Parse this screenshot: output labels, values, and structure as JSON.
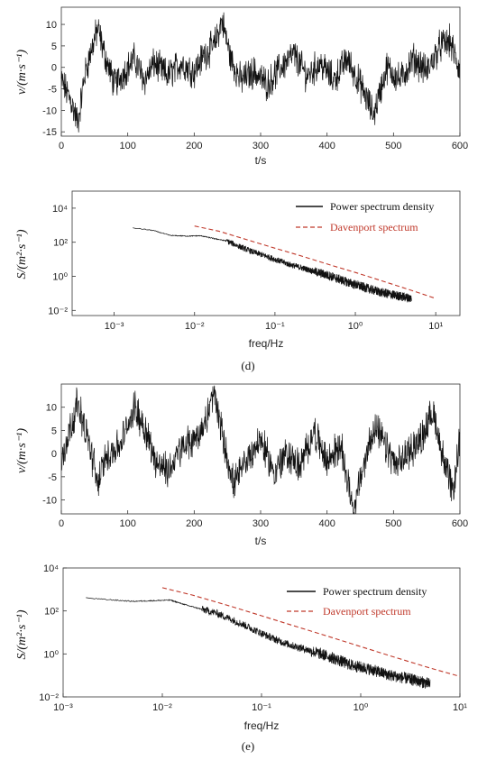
{
  "colors": {
    "signal": "#111111",
    "davenport": "#c0392b",
    "axis": "#333333"
  },
  "labels": {
    "panel_d": "(d)",
    "panel_e": "(e)"
  },
  "chart_data": [
    {
      "type": "line",
      "id": "velocity-d",
      "xlabel": "t/s",
      "ylabel": "v/(m·s⁻¹)",
      "xlim": [
        0,
        600
      ],
      "ylim": [
        -16,
        14
      ],
      "xticks": [
        0,
        100,
        200,
        300,
        400,
        500,
        600
      ],
      "yticks": [
        -15,
        -10,
        -5,
        0,
        5,
        10
      ],
      "series": [
        {
          "values_description_free": true,
          "t": [
            0,
            15,
            25,
            35,
            45,
            55,
            65,
            80,
            95,
            110,
            125,
            140,
            160,
            180,
            200,
            215,
            230,
            242,
            255,
            270,
            290,
            310,
            330,
            350,
            370,
            390,
            410,
            430,
            450,
            470,
            490,
            510,
            530,
            550,
            570,
            585,
            600
          ],
          "v": [
            -3,
            -8,
            -13,
            -2,
            4,
            9,
            3,
            -4,
            -1,
            2,
            -3,
            1,
            -2,
            1,
            -1,
            3,
            5,
            11,
            2,
            -3,
            -1,
            -4,
            0,
            3,
            -2,
            1,
            -3,
            2,
            -4,
            -11,
            0,
            -3,
            2,
            -1,
            5,
            6,
            -1
          ]
        }
      ]
    },
    {
      "type": "line",
      "id": "psd-d",
      "xlabel": "freq/Hz",
      "ylabel": "S/(m²·s⁻¹)",
      "xscale": "log",
      "yscale": "log",
      "xlim": [
        0.0003,
        20
      ],
      "ylim": [
        0.005,
        100000
      ],
      "xticks": [
        0.001,
        0.01,
        0.1,
        1,
        10
      ],
      "xtick_labels": [
        "10⁻³",
        "10⁻²",
        "10⁻¹",
        "10⁰",
        "10¹"
      ],
      "yticks": [
        0.01,
        1,
        100,
        10000
      ],
      "ytick_labels": [
        "10⁻²",
        "10⁰",
        "10²",
        "10⁴"
      ],
      "legend": "top-right",
      "series": [
        {
          "name": "Power spectrum density",
          "freq": [
            0.0017,
            0.003,
            0.005,
            0.008,
            0.012,
            0.018,
            0.025,
            0.035,
            0.05,
            0.07,
            0.1,
            0.15,
            0.2,
            0.3,
            0.5,
            0.8,
            1.2,
            2,
            3,
            5
          ],
          "psd": [
            700,
            500,
            250,
            230,
            240,
            160,
            120,
            60,
            30,
            18,
            10,
            5,
            3.5,
            2,
            1,
            0.45,
            0.25,
            0.12,
            0.08,
            0.05
          ]
        },
        {
          "name": "Davenport spectrum",
          "freq": [
            0.01,
            0.02,
            0.05,
            0.1,
            0.2,
            0.5,
            1,
            2,
            5,
            10
          ],
          "psd": [
            900,
            450,
            120,
            45,
            17,
            4.5,
            1.7,
            0.6,
            0.15,
            0.05
          ]
        }
      ]
    },
    {
      "type": "line",
      "id": "velocity-e",
      "xlabel": "t/s",
      "ylabel": "v/(m·s⁻¹)",
      "xlim": [
        0,
        600
      ],
      "ylim": [
        -13,
        15
      ],
      "xticks": [
        0,
        100,
        200,
        300,
        400,
        500,
        600
      ],
      "yticks": [
        -10,
        -5,
        0,
        5,
        10
      ],
      "series": [
        {
          "t": [
            0,
            10,
            25,
            40,
            55,
            70,
            90,
            110,
            125,
            140,
            160,
            180,
            200,
            215,
            230,
            245,
            260,
            280,
            300,
            320,
            340,
            360,
            380,
            400,
            420,
            440,
            455,
            470,
            490,
            505,
            520,
            540,
            560,
            575,
            590,
            600
          ],
          "v": [
            -2,
            4,
            11,
            3,
            -6,
            0,
            2,
            10,
            6,
            -1,
            -4,
            1,
            3,
            6,
            13,
            2,
            -7,
            -1,
            3,
            -4,
            0,
            -3,
            5,
            -2,
            2,
            -12,
            -3,
            6,
            1,
            -3,
            0,
            3,
            9,
            -1,
            -9,
            4
          ]
        }
      ]
    },
    {
      "type": "line",
      "id": "psd-e",
      "xlabel": "freq/Hz",
      "ylabel": "S/(m²·s⁻¹)",
      "xscale": "log",
      "yscale": "log",
      "xlim": [
        0.001,
        10
      ],
      "ylim": [
        0.01,
        10000
      ],
      "xticks": [
        0.001,
        0.01,
        0.1,
        1,
        10
      ],
      "xtick_labels": [
        "10⁻³",
        "10⁻²",
        "10⁻¹",
        "10⁰",
        "10¹"
      ],
      "yticks": [
        0.01,
        1,
        100,
        10000
      ],
      "ytick_labels": [
        "10⁻²",
        "10⁰",
        "10²",
        "10⁴"
      ],
      "legend": "top-right",
      "series": [
        {
          "name": "Power spectrum density",
          "freq": [
            0.0017,
            0.003,
            0.005,
            0.008,
            0.012,
            0.018,
            0.025,
            0.035,
            0.05,
            0.07,
            0.1,
            0.15,
            0.2,
            0.3,
            0.5,
            0.8,
            1.2,
            2,
            3,
            5
          ],
          "psd": [
            400,
            330,
            280,
            300,
            320,
            180,
            120,
            80,
            40,
            20,
            9,
            4,
            2.5,
            1.5,
            0.7,
            0.3,
            0.2,
            0.1,
            0.07,
            0.04
          ]
        },
        {
          "name": "Davenport spectrum",
          "freq": [
            0.01,
            0.02,
            0.05,
            0.1,
            0.2,
            0.5,
            1,
            2,
            5,
            10
          ],
          "psd": [
            1200,
            550,
            160,
            60,
            22,
            6,
            2.2,
            0.8,
            0.22,
            0.09
          ]
        }
      ]
    }
  ]
}
